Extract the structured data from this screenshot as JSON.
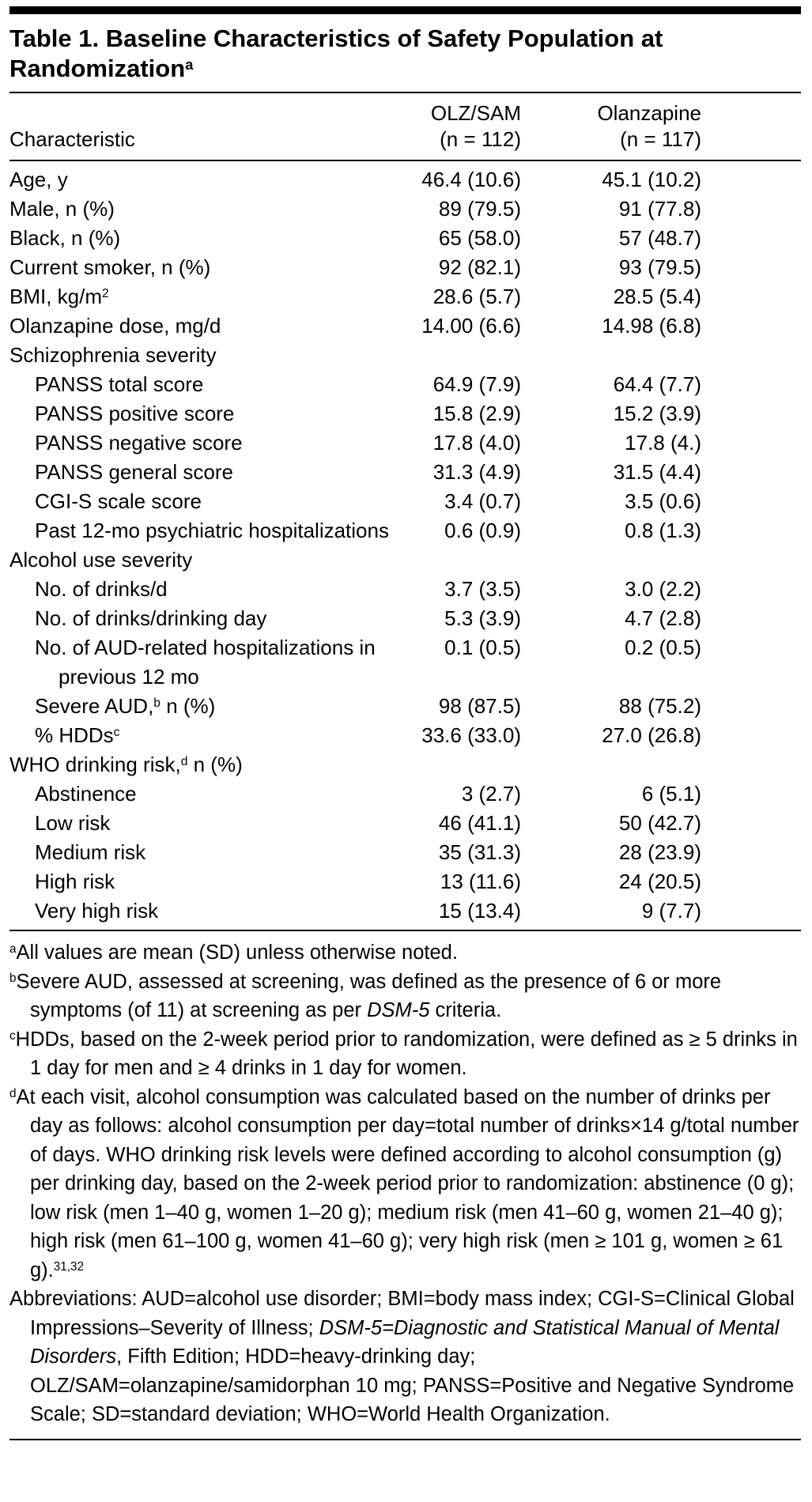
{
  "table": {
    "title": "Table 1. Baseline Characteristics of Safety Population at Randomization",
    "title_sup": "a",
    "characteristic_header": "Characteristic",
    "columns": [
      {
        "name": "OLZ/SAM",
        "n": "(n = 112)"
      },
      {
        "name": "Olanzapine",
        "n": "(n = 117)"
      }
    ],
    "rows": [
      {
        "pre": "Age, y",
        "sup": "",
        "post": "",
        "indent": 0,
        "section": false,
        "v1": "46.4 (10.6)",
        "v2": "45.1 (10.2)"
      },
      {
        "pre": "Male, n (%)",
        "sup": "",
        "post": "",
        "indent": 0,
        "section": false,
        "v1": "89 (79.5)",
        "v2": "91 (77.8)"
      },
      {
        "pre": "Black, n (%)",
        "sup": "",
        "post": "",
        "indent": 0,
        "section": false,
        "v1": "65 (58.0)",
        "v2": "57 (48.7)"
      },
      {
        "pre": "Current smoker, n (%)",
        "sup": "",
        "post": "",
        "indent": 0,
        "section": false,
        "v1": "92 (82.1)",
        "v2": "93 (79.5)"
      },
      {
        "pre": "BMI, kg/m",
        "sup": "2",
        "post": "",
        "indent": 0,
        "section": false,
        "v1": "28.6 (5.7)",
        "v2": "28.5 (5.4)"
      },
      {
        "pre": "Olanzapine dose, mg/d",
        "sup": "",
        "post": "",
        "indent": 0,
        "section": false,
        "v1": "14.00 (6.6)",
        "v2": "14.98 (6.8)"
      },
      {
        "pre": "Schizophrenia severity",
        "sup": "",
        "post": "",
        "indent": 0,
        "section": true,
        "v1": "",
        "v2": ""
      },
      {
        "pre": "PANSS total score",
        "sup": "",
        "post": "",
        "indent": 1,
        "section": false,
        "v1": "64.9 (7.9)",
        "v2": "64.4 (7.7)"
      },
      {
        "pre": "PANSS positive score",
        "sup": "",
        "post": "",
        "indent": 1,
        "section": false,
        "v1": "15.8 (2.9)",
        "v2": "15.2 (3.9)"
      },
      {
        "pre": "PANSS negative score",
        "sup": "",
        "post": "",
        "indent": 1,
        "section": false,
        "v1": "17.8 (4.0)",
        "v2": "17.8 (4.)"
      },
      {
        "pre": "PANSS general score",
        "sup": "",
        "post": "",
        "indent": 1,
        "section": false,
        "v1": "31.3 (4.9)",
        "v2": "31.5 (4.4)"
      },
      {
        "pre": "CGI-S scale score",
        "sup": "",
        "post": "",
        "indent": 1,
        "section": false,
        "v1": "3.4 (0.7)",
        "v2": "3.5 (0.6)"
      },
      {
        "pre": "Past 12-mo psychiatric hospitalizations",
        "sup": "",
        "post": "",
        "indent": 1,
        "section": false,
        "v1": "0.6 (0.9)",
        "v2": "0.8 (1.3)"
      },
      {
        "pre": "Alcohol use severity",
        "sup": "",
        "post": "",
        "indent": 0,
        "section": true,
        "v1": "",
        "v2": ""
      },
      {
        "pre": "No. of drinks/d",
        "sup": "",
        "post": "",
        "indent": 1,
        "section": false,
        "v1": "3.7 (3.5)",
        "v2": "3.0 (2.2)"
      },
      {
        "pre": "No. of drinks/drinking day",
        "sup": "",
        "post": "",
        "indent": 1,
        "section": false,
        "v1": "5.3 (3.9)",
        "v2": "4.7 (2.8)"
      },
      {
        "pre": "No. of AUD-related hospitalizations in previous 12 mo",
        "sup": "",
        "post": "",
        "indent": 1,
        "section": false,
        "v1": "0.1 (0.5)",
        "v2": "0.2 (0.5)"
      },
      {
        "pre": "Severe AUD,",
        "sup": "b",
        "post": " n (%)",
        "indent": 1,
        "section": false,
        "v1": "98 (87.5)",
        "v2": "88 (75.2)"
      },
      {
        "pre": "% HDDs",
        "sup": "c",
        "post": "",
        "indent": 1,
        "section": false,
        "v1": "33.6 (33.0)",
        "v2": "27.0 (26.8)"
      },
      {
        "pre": "WHO drinking risk,",
        "sup": "d",
        "post": " n (%)",
        "indent": 0,
        "section": true,
        "v1": "",
        "v2": ""
      },
      {
        "pre": "Abstinence",
        "sup": "",
        "post": "",
        "indent": 1,
        "section": false,
        "v1": "3 (2.7)",
        "v2": "6 (5.1)"
      },
      {
        "pre": "Low risk",
        "sup": "",
        "post": "",
        "indent": 1,
        "section": false,
        "v1": "46 (41.1)",
        "v2": "50 (42.7)"
      },
      {
        "pre": "Medium risk",
        "sup": "",
        "post": "",
        "indent": 1,
        "section": false,
        "v1": "35 (31.3)",
        "v2": "28 (23.9)"
      },
      {
        "pre": "High risk",
        "sup": "",
        "post": "",
        "indent": 1,
        "section": false,
        "v1": "13 (11.6)",
        "v2": "24 (20.5)"
      },
      {
        "pre": "Very high risk",
        "sup": "",
        "post": "",
        "indent": 1,
        "section": false,
        "v1": "15 (13.4)",
        "v2": "9 (7.7)"
      }
    ]
  },
  "footnotes": [
    {
      "marker": "a",
      "segments": [
        {
          "t": "All values are mean (SD) unless otherwise noted."
        }
      ]
    },
    {
      "marker": "b",
      "segments": [
        {
          "t": "Severe AUD, assessed at screening, was defined as the presence of 6 or more symptoms (of 11) at screening as per "
        },
        {
          "t": "DSM-5",
          "s": "i"
        },
        {
          "t": " criteria."
        }
      ]
    },
    {
      "marker": "c",
      "segments": [
        {
          "t": "HDDs, based on the 2-week period prior to randomization, were defined as ≥ 5 drinks in 1 day for men and ≥ 4 drinks in 1 day for women."
        }
      ]
    },
    {
      "marker": "d",
      "segments": [
        {
          "t": "At each visit, alcohol consumption was calculated based on the number of drinks per day as follows: alcohol consumption per day=total number of drinks×14 g/total number of days. WHO drinking risk levels were defined according to alcohol consumption (g) per drinking day, based on the 2-week period prior to randomization: abstinence (0 g); low risk (men 1–40 g, women 1–20 g); medium risk (men 41–60 g, women 21–40 g); high risk (men 61–100 g, women 41–60 g); very high risk (men ≥ 101 g, women ≥ 61 g)."
        },
        {
          "t": "31,32",
          "s": "sup"
        }
      ]
    },
    {
      "marker": "",
      "segments": [
        {
          "t": "Abbreviations: AUD=alcohol use disorder; BMI=body mass index; CGI-S=Clinical Global Impressions–Severity of Illness; "
        },
        {
          "t": "DSM-5=Diagnostic and Statistical Manual of Mental Disorders",
          "s": "i"
        },
        {
          "t": ", Fifth Edition; HDD=heavy-drinking day; OLZ/SAM=olanzapine/samidorphan 10 mg; PANSS=Positive and Negative Syndrome Scale; SD=standard deviation; WHO=World Health Organization."
        }
      ]
    }
  ],
  "colors": {
    "text": "#000000",
    "rule": "#000000",
    "background": "#ffffff"
  }
}
